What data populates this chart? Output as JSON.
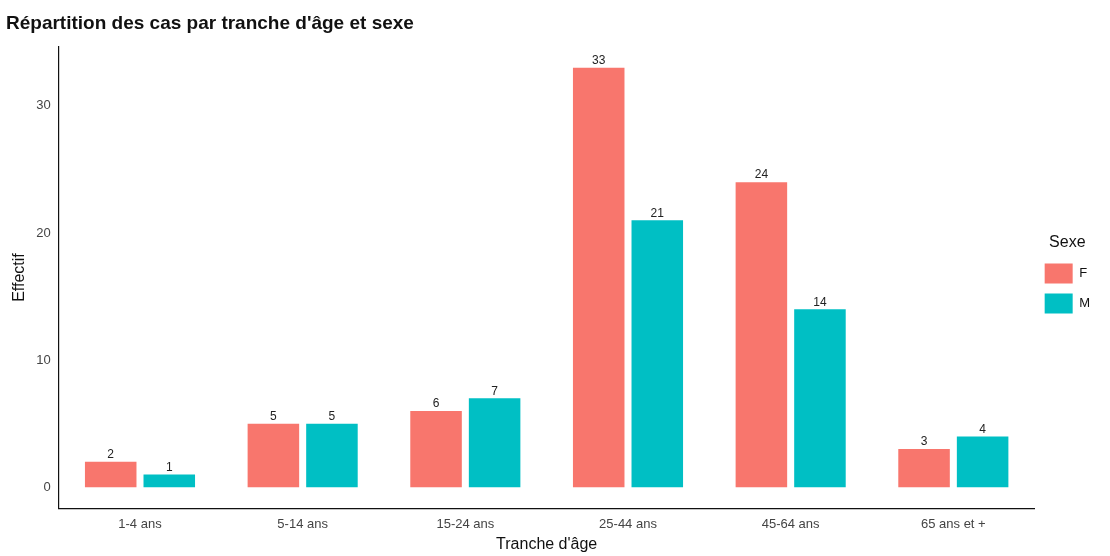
{
  "chart_data": {
    "type": "bar",
    "title": "Répartition des cas par tranche d'âge et sexe",
    "xlabel": "Tranche d'âge",
    "ylabel": "Effectif",
    "legend_title": "Sexe",
    "legend": "right",
    "categories": [
      "1-4 ans",
      "5-14 ans",
      "15-24 ans",
      "25-44 ans",
      "45-64 ans",
      "65 ans et +"
    ],
    "series": [
      {
        "name": "F",
        "color": "#f8766d",
        "values": [
          2,
          5,
          6,
          33,
          24,
          3
        ]
      },
      {
        "name": "M",
        "color": "#00bfc4",
        "values": [
          1,
          5,
          7,
          21,
          14,
          4
        ]
      }
    ],
    "ylim": [
      -1.65,
      34.65
    ],
    "yticks": [
      0,
      10,
      20,
      30
    ],
    "grid": false,
    "data_labels": true
  }
}
